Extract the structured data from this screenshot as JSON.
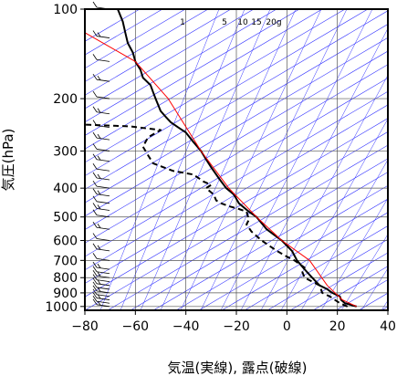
{
  "chart_data": {
    "type": "line",
    "xlabel": "気温(実線), 露点(破線)",
    "ylabel": "気圧(hPa)",
    "xlim": [
      -80,
      40
    ],
    "ylim": [
      1030,
      100
    ],
    "y_scale": "log",
    "x_ticks": [
      -80,
      -60,
      -40,
      -20,
      0,
      20,
      40
    ],
    "x_tick_labels": [
      "−80",
      "−60",
      "−40",
      "−20",
      "0",
      "20",
      "40"
    ],
    "y_ticks": [
      100,
      200,
      300,
      400,
      500,
      600,
      700,
      800,
      900,
      1000
    ],
    "y_tick_labels": [
      "100",
      "200",
      "300",
      "400",
      "500",
      "600",
      "700",
      "800",
      "900",
      "1000"
    ],
    "mixing_ratio_labels": [
      "1",
      "5",
      "10",
      "15",
      "20g"
    ],
    "series": [
      {
        "role": "temperature",
        "color": "#000000",
        "dash": "solid",
        "points": [
          [
            27.6,
            1000
          ],
          [
            23,
            975
          ],
          [
            21.5,
            950
          ],
          [
            21,
            925
          ],
          [
            18,
            900
          ],
          [
            16,
            875
          ],
          [
            13,
            850
          ],
          [
            10,
            800
          ],
          [
            7,
            750
          ],
          [
            4,
            700
          ],
          [
            2,
            650
          ],
          [
            -2,
            600
          ],
          [
            -5,
            575
          ],
          [
            -8,
            550
          ],
          [
            -12,
            500
          ],
          [
            -15,
            480
          ],
          [
            -19,
            450
          ],
          [
            -21,
            420
          ],
          [
            -24,
            400
          ],
          [
            -27,
            370
          ],
          [
            -30,
            340
          ],
          [
            -32,
            320
          ],
          [
            -34,
            300
          ],
          [
            -37,
            280
          ],
          [
            -40,
            260
          ],
          [
            -43,
            250
          ],
          [
            -46,
            240
          ],
          [
            -48,
            230
          ],
          [
            -50,
            220
          ],
          [
            -52,
            200
          ],
          [
            -53,
            190
          ],
          [
            -54,
            180
          ],
          [
            -57,
            170
          ],
          [
            -58,
            160
          ],
          [
            -60,
            150
          ],
          [
            -61,
            140
          ],
          [
            -63,
            130
          ],
          [
            -64,
            120
          ],
          [
            -65,
            110
          ],
          [
            -67,
            100
          ]
        ]
      },
      {
        "role": "dewpoint",
        "color": "#000000",
        "dash": "dashed",
        "points": [
          [
            24,
            1000
          ],
          [
            21,
            975
          ],
          [
            19,
            950
          ],
          [
            17,
            925
          ],
          [
            14,
            900
          ],
          [
            13,
            850
          ],
          [
            7,
            800
          ],
          [
            6,
            760
          ],
          [
            7,
            740
          ],
          [
            5,
            720
          ],
          [
            3,
            700
          ],
          [
            0,
            680
          ],
          [
            -4,
            650
          ],
          [
            -10,
            600
          ],
          [
            -14,
            560
          ],
          [
            -16,
            530
          ],
          [
            -15,
            510
          ],
          [
            -16,
            480
          ],
          [
            -19,
            470
          ],
          [
            -23,
            460
          ],
          [
            -26,
            450
          ],
          [
            -28,
            440
          ],
          [
            -29,
            420
          ],
          [
            -32,
            400
          ],
          [
            -30,
            390
          ],
          [
            -33,
            380
          ],
          [
            -35,
            370
          ],
          [
            -37,
            360
          ],
          [
            -45,
            350
          ],
          [
            -49,
            340
          ],
          [
            -53,
            330
          ],
          [
            -55,
            310
          ],
          [
            -57,
            290
          ],
          [
            -55,
            270
          ],
          [
            -50,
            255
          ],
          [
            -62,
            248
          ],
          [
            -78,
            245
          ],
          [
            -85,
            244
          ]
        ]
      },
      {
        "role": "parcel",
        "color": "#ff0000",
        "dash": "solid",
        "points": [
          [
            27.6,
            1000
          ],
          [
            22,
            950
          ],
          [
            16,
            850
          ],
          [
            9,
            700
          ],
          [
            -2,
            600
          ],
          [
            -12,
            500
          ],
          [
            -23,
            400
          ],
          [
            -34,
            300
          ],
          [
            -47,
            200
          ],
          [
            -60,
            150
          ],
          [
            -80,
            120
          ]
        ]
      }
    ],
    "grid": true,
    "background_lines_color": "#3030ff",
    "wind_barbs": {
      "position": "left",
      "levels": [
        1000,
        975,
        950,
        925,
        900,
        875,
        850,
        825,
        800,
        775,
        750,
        700,
        650,
        600,
        550,
        500,
        475,
        450,
        425,
        400,
        375,
        350,
        325,
        300,
        275,
        250,
        225,
        200,
        175,
        150,
        125,
        100
      ]
    }
  }
}
